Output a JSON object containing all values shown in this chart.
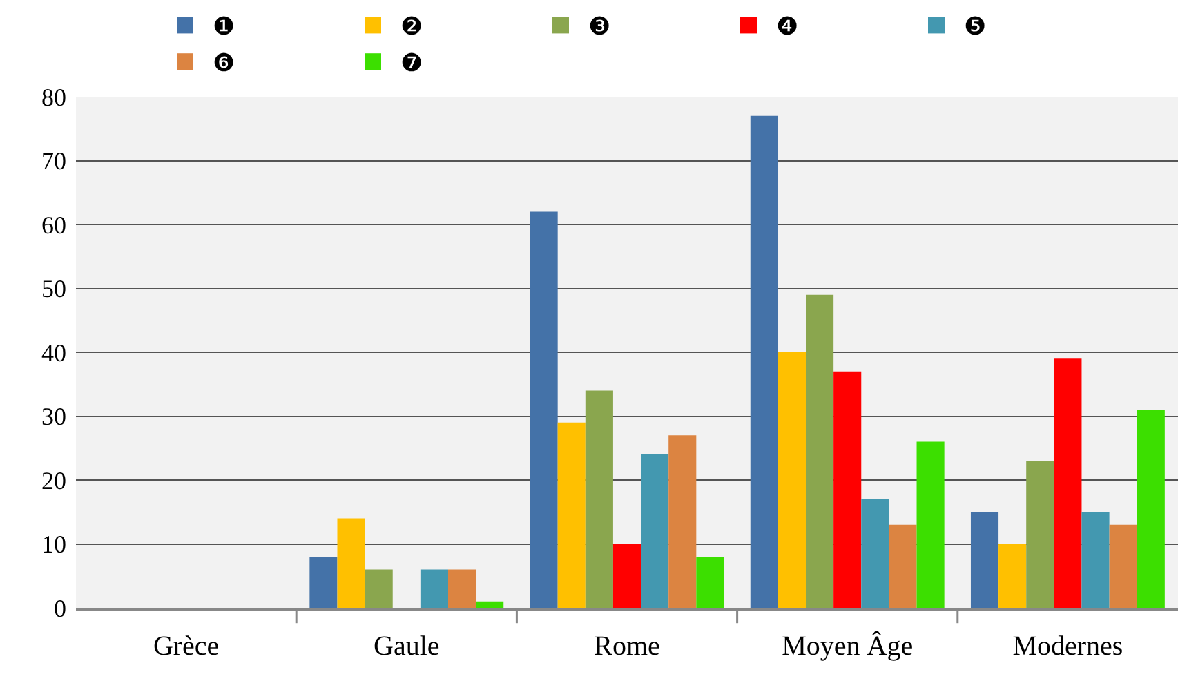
{
  "chart_data": {
    "type": "bar",
    "categories": [
      "Grèce",
      "Gaule",
      "Rome",
      "Moyen Âge",
      "Modernes"
    ],
    "series": [
      {
        "name": "❶",
        "color": "#4472a8",
        "values": [
          0,
          8,
          62,
          77,
          15
        ]
      },
      {
        "name": "❷",
        "color": "#ffc000",
        "values": [
          0,
          14,
          29,
          40,
          10
        ]
      },
      {
        "name": "❸",
        "color": "#8aa64e",
        "values": [
          0,
          6,
          34,
          49,
          23
        ]
      },
      {
        "name": "❹",
        "color": "#ff0000",
        "values": [
          0,
          0,
          10,
          37,
          39
        ]
      },
      {
        "name": "❺",
        "color": "#4398b0",
        "values": [
          0,
          6,
          24,
          17,
          15
        ]
      },
      {
        "name": "❻",
        "color": "#dc8441",
        "values": [
          0,
          6,
          27,
          13,
          13
        ]
      },
      {
        "name": "❼",
        "color": "#3cdf00",
        "values": [
          0,
          1,
          8,
          26,
          31
        ]
      }
    ],
    "ylim": [
      0,
      80
    ],
    "yticks": [
      0,
      10,
      20,
      30,
      40,
      50,
      60,
      70,
      80
    ],
    "grid": "y",
    "legend": "top"
  }
}
